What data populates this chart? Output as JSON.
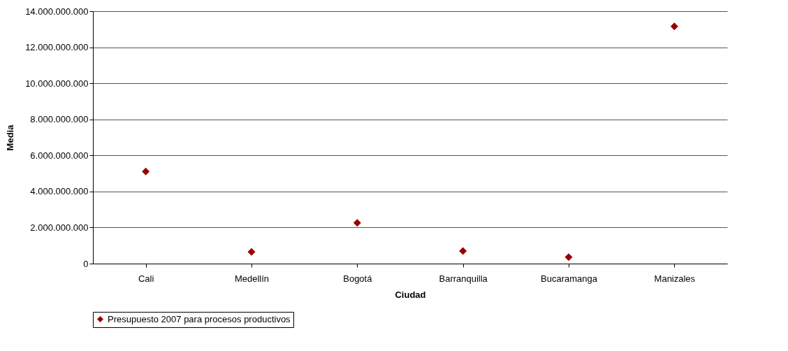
{
  "chart_data": {
    "type": "scatter",
    "xlabel": "Ciudad",
    "ylabel": "Media",
    "categories": [
      "Cali",
      "Medellín",
      "Bogotá",
      "Barranquilla",
      "Bucaramanga",
      "Manizales"
    ],
    "series": [
      {
        "name": "Presupuesto 2007 para procesos productivos",
        "color": "#990000",
        "values": [
          5110000000,
          650000000,
          2260000000,
          700000000,
          360000000,
          13160000000
        ]
      }
    ],
    "ylim": [
      0,
      14000000000
    ],
    "yticks": [
      {
        "value": 0,
        "label": "0"
      },
      {
        "value": 2000000000,
        "label": "2.000.000.000"
      },
      {
        "value": 4000000000,
        "label": "4.000.000.000"
      },
      {
        "value": 6000000000,
        "label": "6.000.000.000"
      },
      {
        "value": 8000000000,
        "label": "8.000.000.000"
      },
      {
        "value": 10000000000,
        "label": "10.000.000.000"
      },
      {
        "value": 12000000000,
        "label": "12.000.000.000"
      },
      {
        "value": 14000000000,
        "label": "14.000.000.000"
      }
    ],
    "grid": "y",
    "legend": "bottom",
    "marker": "diamond"
  }
}
